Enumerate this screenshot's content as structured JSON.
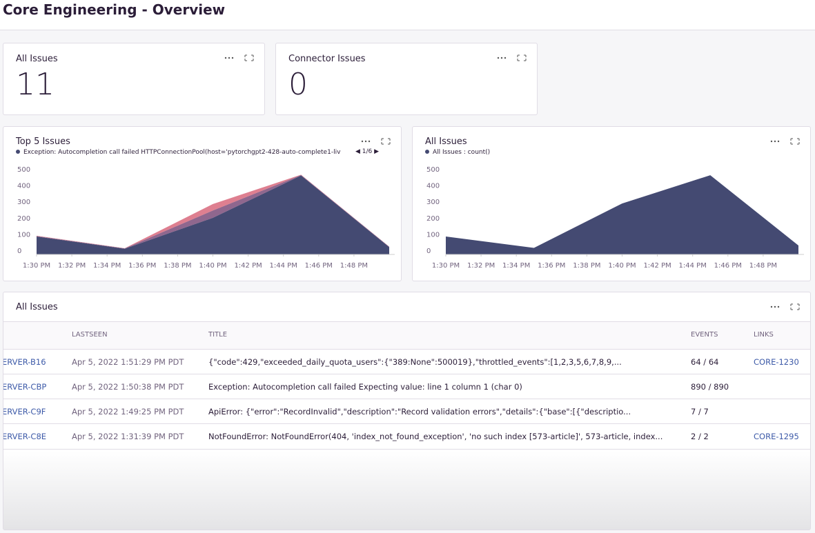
{
  "header": {
    "title": "Core Engineering - Overview"
  },
  "widgets": [
    {
      "title": "All Issues",
      "value": 11
    },
    {
      "title": "Connector Issues",
      "value": 0
    }
  ],
  "chart_data": [
    {
      "type": "area",
      "title": "Top 5 Issues",
      "legend_pager": "1/6",
      "stacked": true,
      "x": [
        "1:30 PM",
        "1:35 PM",
        "1:40 PM",
        "1:45 PM",
        "1:50 PM"
      ],
      "xlim": [
        "1:30 PM",
        "1:50 PM"
      ],
      "xticks": [
        "1:30 PM",
        "1:32 PM",
        "1:34 PM",
        "1:36 PM",
        "1:38 PM",
        "1:40 PM",
        "1:42 PM",
        "1:44 PM",
        "1:46 PM",
        "1:48 PM"
      ],
      "ylim": [
        0,
        500
      ],
      "yticks": [
        0,
        100,
        200,
        300,
        400,
        500
      ],
      "series": [
        {
          "name": "Exception: Autocompletion call failed HTTPConnectionPool(host='pytorchgpt2-428-auto-complete1-liv",
          "color": "#444a72",
          "values": [
            110,
            35,
            225,
            485,
            45
          ]
        },
        {
          "color": "#7b4c7a",
          "values": [
            3,
            2,
            45,
            3,
            2
          ]
        },
        {
          "color": "#d8687c",
          "values": [
            2,
            1,
            40,
            2,
            1
          ]
        }
      ]
    },
    {
      "type": "area",
      "title": "All Issues",
      "x": [
        "1:30 PM",
        "1:35 PM",
        "1:40 PM",
        "1:45 PM",
        "1:50 PM"
      ],
      "xlim": [
        "1:30 PM",
        "1:50 PM"
      ],
      "xticks": [
        "1:30 PM",
        "1:32 PM",
        "1:34 PM",
        "1:36 PM",
        "1:38 PM",
        "1:40 PM",
        "1:42 PM",
        "1:44 PM",
        "1:46 PM",
        "1:48 PM"
      ],
      "ylim": [
        0,
        500
      ],
      "yticks": [
        0,
        100,
        200,
        300,
        400,
        500
      ],
      "series": [
        {
          "name": "All Issues : count()",
          "color": "#444a72",
          "values": [
            110,
            40,
            313,
            487,
            55
          ]
        }
      ]
    }
  ],
  "table": {
    "title": "All Issues",
    "columns": [
      "LASTSEEN",
      "TITLE",
      "EVENTS",
      "LINKS"
    ],
    "rows": [
      {
        "id": "ERVER-B16",
        "lastseen": "Apr 5, 2022 1:51:29 PM PDT",
        "title": "{\"code\":429,\"exceeded_daily_quota_users\":{\"389:None\":500019},\"throttled_events\":[1,2,3,5,6,7,8,9,...",
        "events": "64 / 64",
        "link": "CORE-1230"
      },
      {
        "id": "ERVER-CBP",
        "lastseen": "Apr 5, 2022 1:50:38 PM PDT",
        "title": "Exception: Autocompletion call failed Expecting value: line 1 column 1 (char 0)",
        "events": "890 / 890",
        "link": null
      },
      {
        "id": "ERVER-C9F",
        "lastseen": "Apr 5, 2022 1:49:25 PM PDT",
        "title": "ApiError: {\"error\":\"RecordInvalid\",\"description\":\"Record validation errors\",\"details\":{\"base\":[{\"descriptio...",
        "events": "7 / 7",
        "link": null
      },
      {
        "id": "ERVER-C8E",
        "lastseen": "Apr 5, 2022 1:31:39 PM PDT",
        "title": "NotFoundError: NotFoundError(404, 'index_not_found_exception', 'no such index [573-article]', 573-article, index...",
        "events": "2 / 2",
        "link": "CORE-1295"
      }
    ]
  }
}
